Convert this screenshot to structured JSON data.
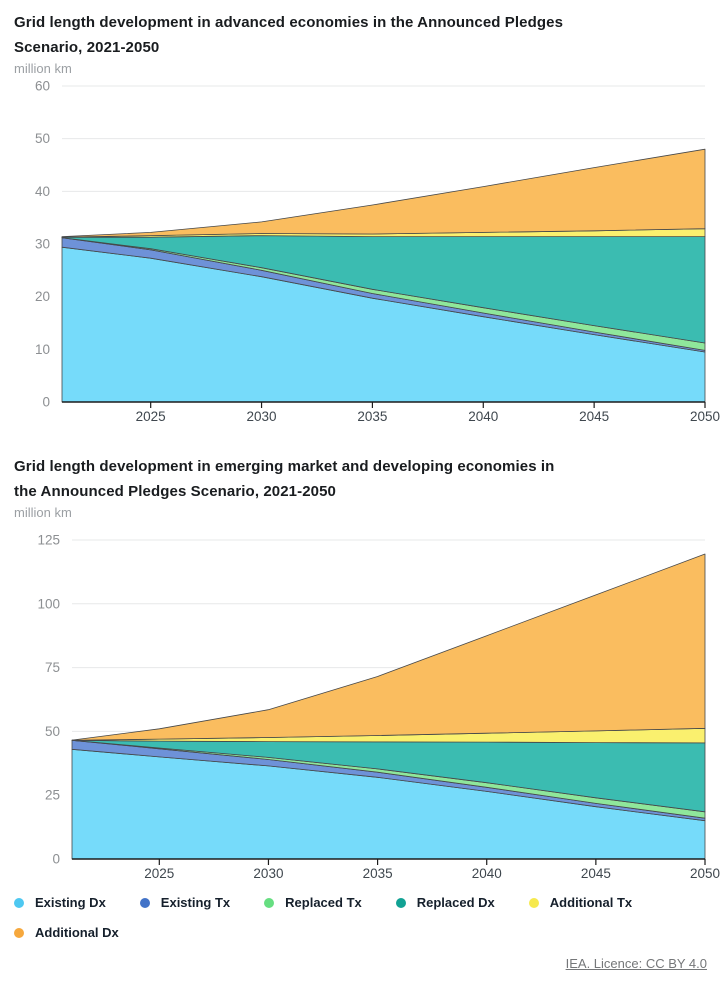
{
  "charts": [
    {
      "title_lines": [
        "Grid length development in advanced economies in the Announced Pledges",
        "Scenario, 2021-2050"
      ],
      "unit": "million km"
    },
    {
      "title_lines": [
        "Grid length development in emerging market and developing economies in",
        "the Announced Pledges Scenario, 2021-2050"
      ],
      "unit": "million km"
    }
  ],
  "chart_data": [
    {
      "type": "area",
      "stacked": true,
      "title": "Grid length development in advanced economies in the Announced Pledges Scenario, 2021-2050",
      "ylabel": "million km",
      "x": [
        2021,
        2025,
        2030,
        2035,
        2040,
        2045,
        2050
      ],
      "xlim": [
        2021,
        2050
      ],
      "ylim": [
        0,
        60
      ],
      "xticks": [
        2025,
        2030,
        2035,
        2040,
        2045,
        2050
      ],
      "yticks": [
        0,
        10,
        20,
        30,
        40,
        50,
        60
      ],
      "grid": "horizontal",
      "legend_position": "bottom",
      "series": [
        {
          "name": "Existing Dx",
          "color": "#4EC8F1",
          "fill": "#76DBFA",
          "values": [
            29.4,
            27.3,
            23.8,
            19.7,
            16.2,
            12.8,
            9.5
          ]
        },
        {
          "name": "Existing Tx",
          "color": "#4273C8",
          "fill": "#6E92D8",
          "values": [
            1.8,
            1.6,
            1.2,
            0.9,
            0.7,
            0.5,
            0.3
          ]
        },
        {
          "name": "Replaced Tx",
          "color": "#66DE81",
          "fill": "#8FE79B",
          "values": [
            0,
            0.2,
            0.5,
            0.8,
            1.0,
            1.2,
            1.4
          ]
        },
        {
          "name": "Replaced Dx",
          "color": "#12A294",
          "fill": "#3BBCB1",
          "values": [
            0.1,
            2.2,
            6.1,
            10.0,
            13.5,
            16.9,
            20.2
          ]
        },
        {
          "name": "Additional Tx",
          "color": "#F6E94E",
          "fill": "#FAF06E",
          "values": [
            0,
            0.3,
            0.4,
            0.5,
            0.8,
            1.1,
            1.5
          ]
        },
        {
          "name": "Additional Dx",
          "color": "#F6A83D",
          "fill": "#FABD5F",
          "values": [
            0.1,
            0.6,
            2.2,
            5.5,
            8.7,
            12.0,
            15.1
          ]
        }
      ]
    },
    {
      "type": "area",
      "stacked": true,
      "title": "Grid length development in emerging market and developing economies in the Announced Pledges Scenario, 2021-2050",
      "ylabel": "million km",
      "x": [
        2021,
        2025,
        2030,
        2035,
        2040,
        2045,
        2050
      ],
      "xlim": [
        2021,
        2050
      ],
      "ylim": [
        0,
        125
      ],
      "xticks": [
        2025,
        2030,
        2035,
        2040,
        2045,
        2050
      ],
      "yticks": [
        0,
        25,
        50,
        75,
        100,
        125
      ],
      "grid": "horizontal",
      "legend_position": "bottom",
      "series": [
        {
          "name": "Existing Dx",
          "color": "#4EC8F1",
          "fill": "#76DBFA",
          "values": [
            43,
            40,
            36.5,
            32,
            26.5,
            20.5,
            15
          ]
        },
        {
          "name": "Existing Tx",
          "color": "#4273C8",
          "fill": "#6E92D8",
          "values": [
            3.5,
            3.2,
            2.5,
            2.0,
            1.6,
            1.3,
            1.0
          ]
        },
        {
          "name": "Replaced Tx",
          "color": "#66DE81",
          "fill": "#8FE79B",
          "values": [
            0,
            0.3,
            0.8,
            1.3,
            1.8,
            2.2,
            2.5
          ]
        },
        {
          "name": "Replaced Dx",
          "color": "#12A294",
          "fill": "#3BBCB1",
          "values": [
            0,
            2.7,
            6.2,
            10.6,
            15.9,
            21.6,
            27.0
          ]
        },
        {
          "name": "Additional Tx",
          "color": "#F6E94E",
          "fill": "#FAF06E",
          "values": [
            0,
            0.8,
            1.6,
            2.5,
            3.5,
            4.6,
            5.7
          ]
        },
        {
          "name": "Additional Dx",
          "color": "#F6A83D",
          "fill": "#FABD5F",
          "values": [
            0.1,
            4.0,
            10.9,
            23.1,
            38.2,
            53.3,
            68.3
          ]
        }
      ]
    }
  ],
  "legend": {
    "items": [
      {
        "label": "Existing Dx",
        "color": "#4EC8F1"
      },
      {
        "label": "Existing Tx",
        "color": "#4273C8"
      },
      {
        "label": "Replaced Tx",
        "color": "#66DE81"
      },
      {
        "label": "Replaced Dx",
        "color": "#12A294"
      },
      {
        "label": "Additional Tx",
        "color": "#F6E94E"
      },
      {
        "label": "Additional Dx",
        "color": "#F6A83D"
      }
    ]
  },
  "footer": {
    "licence_text": "IEA. Licence: CC BY 4.0"
  },
  "colors": {
    "background": "#ffffff",
    "gridline": "#e7e8e9",
    "axis_line": "#1c1c1c",
    "area_outline": "#46484a",
    "y_tick_label": "#8c8f92",
    "x_tick_label": "#3f474e",
    "title": "#191c1f",
    "unit": "#9b9fa3",
    "footer": "#757779"
  }
}
